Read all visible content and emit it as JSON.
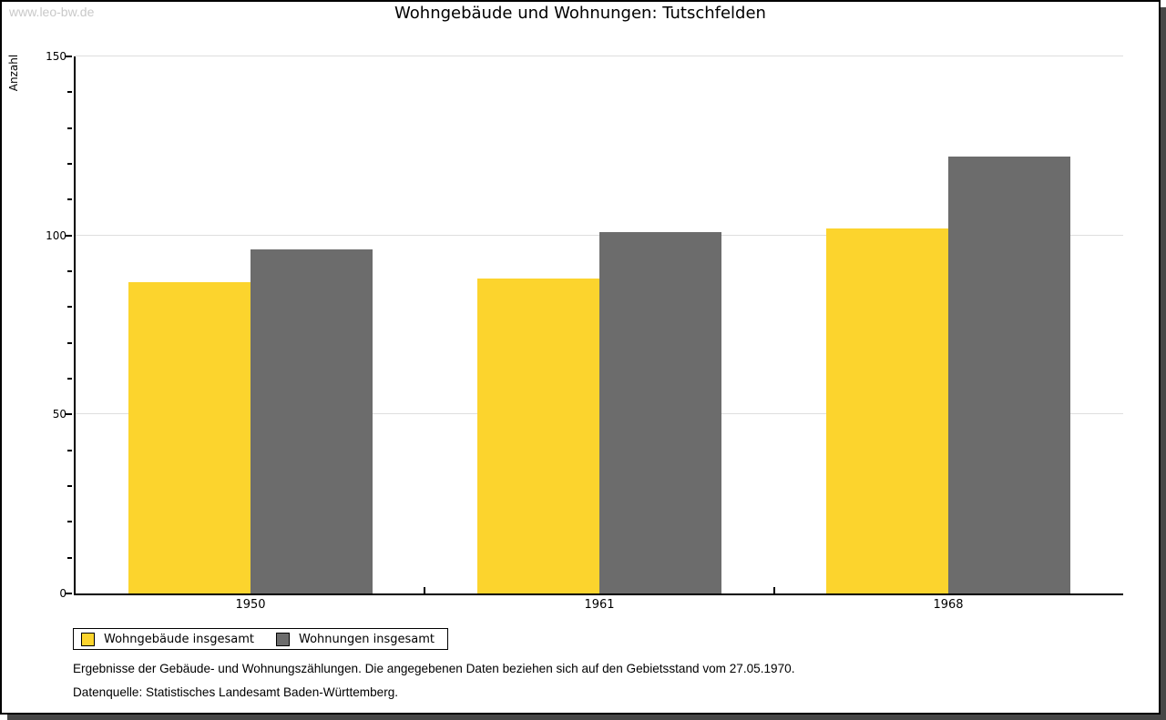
{
  "watermark": "www.leo-bw.de",
  "chart_data": {
    "type": "bar",
    "title": "Wohngebäude und Wohnungen: Tutschfelden",
    "ylabel": "Anzahl",
    "xlabel": "",
    "categories": [
      "1950",
      "1961",
      "1968"
    ],
    "series": [
      {
        "name": "Wohngebäude insgesamt",
        "color": "#FCD42D",
        "values": [
          87,
          88,
          102
        ]
      },
      {
        "name": "Wohnungen insgesamt",
        "color": "#6C6C6C",
        "values": [
          96,
          101,
          122
        ]
      }
    ],
    "ylim": [
      0,
      150
    ],
    "ytick_step": 50,
    "yminor_step": 10,
    "grid": "horizontal-major",
    "legend_position": "bottom-left"
  },
  "footnotes": [
    "Ergebnisse der Gebäude- und Wohnungszählungen. Die angegebenen Daten beziehen sich auf den Gebietsstand vom 27.05.1970.",
    "Datenquelle: Statistisches Landesamt Baden-Württemberg."
  ]
}
